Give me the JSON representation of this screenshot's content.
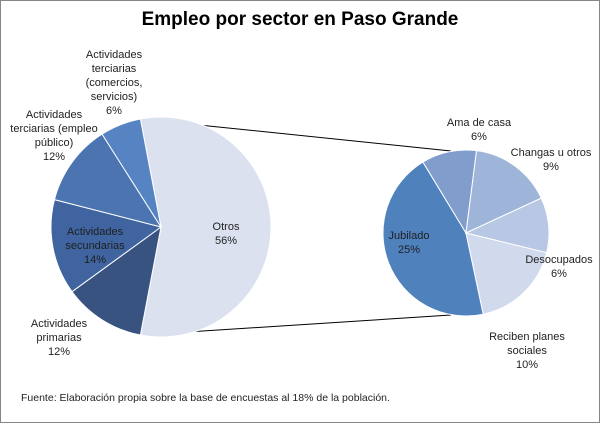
{
  "chart_data": {
    "type": "pie",
    "subtype": "pie-of-pie",
    "title": "Empleo por sector en  Paso Grande",
    "primary": {
      "slices": [
        {
          "label": [
            "Otros"
          ],
          "value": 56,
          "pct": "56%",
          "color": "#dbe1ee"
        },
        {
          "label": [
            "Actividades",
            "primarias"
          ],
          "value": 12,
          "pct": "12%",
          "color": "#38537f"
        },
        {
          "label": [
            "Actividades",
            "secundarias"
          ],
          "value": 14,
          "pct": "14%",
          "color": "#3f649f"
        },
        {
          "label": [
            "Actividades",
            "terciarias (empleo",
            "público)"
          ],
          "value": 12,
          "pct": "12%",
          "color": "#4b74b1"
        },
        {
          "label": [
            "Actividades",
            "terciarias",
            "(comercios,",
            "servicios)"
          ],
          "value": 6,
          "pct": "6%",
          "color": "#5683c2"
        }
      ]
    },
    "secondary": {
      "parent": "Otros",
      "slices": [
        {
          "label": [
            "Jubilado"
          ],
          "value": 25,
          "pct": "25%",
          "color": "#4f81bd"
        },
        {
          "label": [
            "Ama de casa"
          ],
          "value": 6,
          "pct": "6%",
          "color": "#809dcc"
        },
        {
          "label": [
            "Changas u otros"
          ],
          "value": 9,
          "pct": "9%",
          "color": "#9fb4d9"
        },
        {
          "label": [
            "Desocupados"
          ],
          "value": 6,
          "pct": "6%",
          "color": "#b8c7e3"
        },
        {
          "label": [
            "Reciben  planes",
            "sociales"
          ],
          "value": 10,
          "pct": "10%",
          "color": "#d0daec"
        }
      ]
    },
    "source_note": "Fuente: Elaboración propia sobre  la base de encuestas al 18%  de la población."
  }
}
